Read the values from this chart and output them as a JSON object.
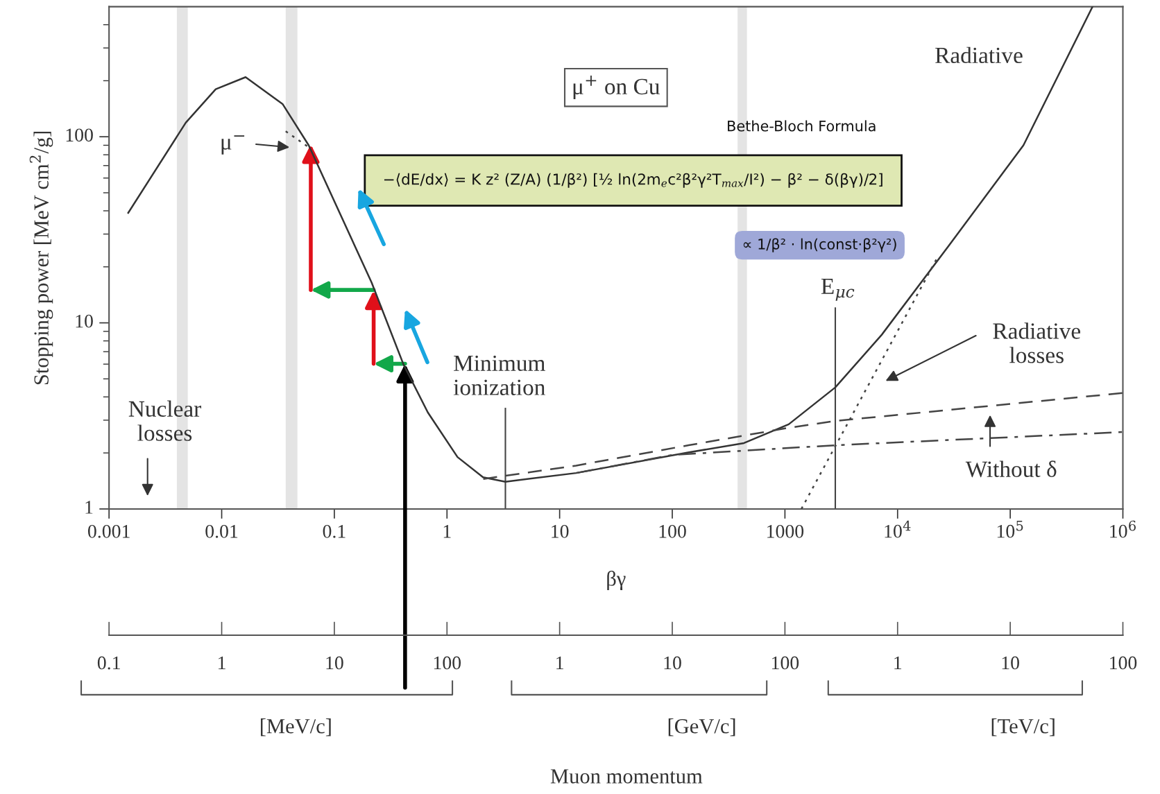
{
  "chart_data": {
    "type": "line",
    "xlabel": "βγ",
    "ylabel": "Stopping power [MeV cm$^{2}$/g]",
    "log": "xy",
    "grid": false,
    "legend": false,
    "marker": "none",
    "xlim": [
      0.001,
      1000000
    ],
    "ylim": [
      1,
      500
    ],
    "xticks": [
      0.001,
      0.01,
      0.1,
      1,
      10,
      100,
      1000,
      {
        "value": 10000,
        "label": "10$^{4}$"
      },
      {
        "value": 100000,
        "label": "10$^{5}$"
      },
      {
        "value": 1000000,
        "label": "10$^{6}$"
      }
    ],
    "yticks": [
      1,
      {
        "value": 2,
        "label": null
      },
      {
        "value": 3,
        "label": null
      },
      {
        "value": 4,
        "label": null
      },
      {
        "value": 5,
        "label": null
      },
      {
        "value": 6,
        "label": null
      },
      {
        "value": 7,
        "label": null
      },
      {
        "value": 8,
        "label": null
      },
      {
        "value": 9,
        "label": null
      },
      10,
      {
        "value": 20,
        "label": null
      },
      {
        "value": 30,
        "label": null
      },
      {
        "value": 40,
        "label": null
      },
      {
        "value": 50,
        "label": null
      },
      {
        "value": 60,
        "label": null
      },
      {
        "value": 70,
        "label": null
      },
      {
        "value": 80,
        "label": null
      },
      {
        "value": 90,
        "label": null
      },
      100,
      {
        "value": 200,
        "label": null
      },
      {
        "value": 300,
        "label": null
      },
      {
        "value": 400,
        "label": null
      }
    ],
    "series": [
      {
        "color": "#333333",
        "line_style": "solid",
        "x": [
          0.00148,
          0.0048,
          0.00885,
          0.0163,
          0.0347,
          0.0592,
          0.1,
          0.214,
          0.41,
          0.676,
          1.24,
          2.09,
          3.3,
          14,
          138,
          433,
          1080,
          2800,
          7200,
          28500,
          131000,
          537000
        ],
        "values": [
          39,
          119,
          180,
          209,
          150,
          90,
          45,
          16.5,
          6.0,
          3.3,
          1.9,
          1.48,
          1.4,
          1.56,
          2.01,
          2.26,
          2.85,
          4.5,
          8.6,
          26,
          90,
          499
        ]
      },
      {
        "color": "#444444",
        "line_style": "dashed",
        "x": [
          2.1,
          14,
          140,
          1080,
          2800,
          1000000
        ],
        "values": [
          1.45,
          1.71,
          2.2,
          2.73,
          2.97,
          4.2
        ]
      },
      {
        "color": "#444444",
        "line_style": "dashdot",
        "x": [
          14,
          100,
          2800,
          1000000
        ],
        "values": [
          1.56,
          1.95,
          2.2,
          2.59
        ]
      },
      {
        "color": "#444444",
        "line_style": "dotted",
        "x": [
          1400,
          22700
        ],
        "values": [
          1,
          22.6
        ]
      },
      {
        "color": "#444444",
        "line_style": "dotted",
        "x": [
          0.037,
          0.059
        ],
        "values": [
          107,
          88
        ]
      }
    ],
    "bands": [
      {
        "axis": "x",
        "from": 0.004,
        "to": 0.005,
        "color": "#e4e4e4"
      },
      {
        "axis": "x",
        "from": 0.037,
        "to": 0.047,
        "color": "#e4e4e4"
      },
      {
        "axis": "x",
        "from": 380,
        "to": 460,
        "color": "#e4e4e4"
      }
    ],
    "ref_lines": [
      {
        "axis": "x",
        "value": 3.3,
        "label": "Minimum\nionization",
        "color": "#444444"
      },
      {
        "axis": "x",
        "value": 2800,
        "label": "E$_{μc}$",
        "color": "#444444"
      }
    ],
    "annotations": [
      "μ$^{+}$ on Cu",
      "Radiative",
      "Bethe-Bloch Formula",
      "−⟨dE/dx⟩ = K z² (Z/A) (1/β²) [½ ln(2m$_{e}$c²β²γ²T$_{max}$/I²) − β² − δ(βγ)/2]",
      "∝ 1/β² · ln(const·β²γ²)",
      "μ$^{−}$",
      "Radiative\nlosses",
      "Without δ",
      "Nuclear\nlosses",
      "Muon momentum",
      "[MeV/c]",
      "[GeV/c]",
      "[TeV/c]",
      "0.1",
      "1",
      "10",
      "100",
      "1",
      "10",
      "100",
      "1",
      "10",
      "100"
    ]
  }
}
